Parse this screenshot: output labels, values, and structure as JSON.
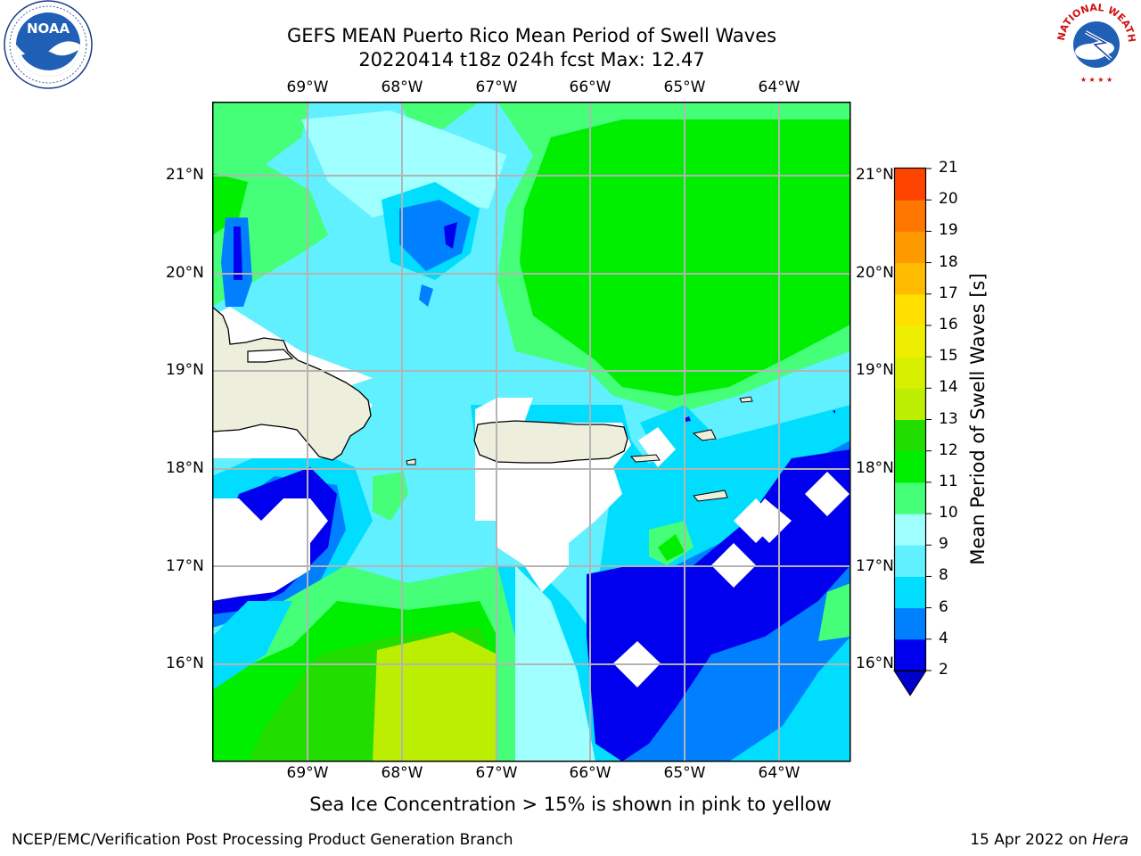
{
  "title": {
    "line1": "GEFS MEAN Puerto Rico Mean Period of Swell Waves",
    "line2": "20220414 t18z 024h fcst   Max: 12.47"
  },
  "map": {
    "lon_labels": [
      "69°W",
      "68°W",
      "67°W",
      "66°W",
      "65°W",
      "64°W"
    ],
    "lat_labels": [
      "21°N",
      "20°N",
      "19°N",
      "18°N",
      "17°N",
      "16°N"
    ],
    "land_color": "#eeeedd",
    "masked_color": "#ffffff",
    "grid_color": "#b4b4b4"
  },
  "colorbar": {
    "title": "Mean Period of Swell Waves [s]",
    "levels": [
      "2",
      "4",
      "6",
      "8",
      "9",
      "10",
      "11",
      "12",
      "13",
      "14",
      "15",
      "16",
      "17",
      "18",
      "19",
      "20",
      "21"
    ],
    "colors": [
      "#0000ee",
      "#0080ff",
      "#00ddff",
      "#60f0ff",
      "#a0ffff",
      "#44ff77",
      "#00ee00",
      "#22dd00",
      "#bbee00",
      "#d8f000",
      "#eeee00",
      "#ffe000",
      "#ffbb00",
      "#ff9900",
      "#ff7700",
      "#ff4400",
      "#ff0000"
    ],
    "under_color": "#0000cc"
  },
  "logos": {
    "noaa_text": "NOAA",
    "nws_text": "NATIONAL WEATHER SERVICE"
  },
  "note": "Sea Ice Concentration > 15% is shown in pink to yellow",
  "footer": {
    "left": "NCEP/EMC/Verification Post Processing Product Generation Branch",
    "date": "15 Apr 2022 on ",
    "host": "Hera"
  }
}
